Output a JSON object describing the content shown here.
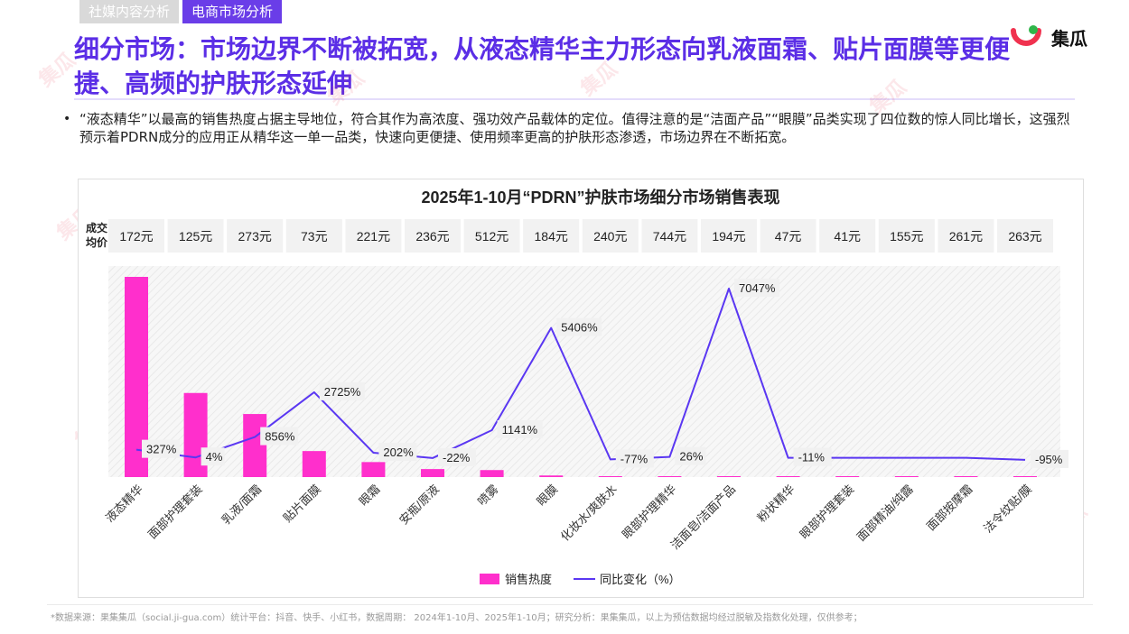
{
  "tabs": [
    {
      "label": "社媒内容分析",
      "active": false
    },
    {
      "label": "电商市场分析",
      "active": true
    }
  ],
  "brand": {
    "name": "集瓜"
  },
  "title": "细分市场：市场边界不断被拓宽，从液态精华主力形态向乳液面霜、贴片面膜等更便捷、高频的护肤形态延伸",
  "bullet": "“液态精华”以最高的销售热度占据主导地位，符合其作为高浓度、强功效产品载体的定位。值得注意的是“洁面产品”“眼膜”品类实现了四位数的惊人同比增长，这强烈预示着PDRN成分的应用正从精华这一单一品类，快速向更便捷、使用频率更高的护肤形态渗透，市场边界在不断拓宽。",
  "footer": "*数据来源：果集集瓜（social.ji-gua.com）统计平台：抖音、快手、小红书，数据周期： 2024年1-10月、2025年1-10月；研究分析：果集集瓜，以上为预估数据均经过脱敏及指数化处理，仅供参考；",
  "colors": {
    "bar": "#ff2fcc",
    "line": "#5a37f2",
    "accent": "#5b2ee6"
  },
  "chart_data": {
    "type": "bar+line",
    "title": "2025年1-10月“PDRN”护肤市场细分市场销售表现",
    "price_row_label": "成交均价",
    "categories": [
      "液态精华",
      "面部护理套装",
      "乳液/面霜",
      "贴片面膜",
      "眼霜",
      "安瓶/原液",
      "喷雾",
      "眼膜",
      "化妆水/爽肤水",
      "眼部护理精华",
      "洁面皂/洁面产品",
      "粉状精华",
      "眼部护理套装",
      "面部精油/纯露",
      "面部按摩霜",
      "法令纹贴/膜"
    ],
    "avg_price": [
      "172元",
      "125元",
      "273元",
      "73元",
      "221元",
      "236元",
      "512元",
      "184元",
      "240元",
      "744元",
      "194元",
      "47元",
      "41元",
      "155元",
      "261元",
      "263元"
    ],
    "series": [
      {
        "name": "销售热度",
        "type": "bar",
        "values": [
          100,
          42,
          31.5,
          13,
          7.5,
          4,
          3.5,
          0.8,
          0.4,
          0.2,
          0.2,
          0.1,
          0.1,
          0.1,
          0.1,
          0.1
        ]
      },
      {
        "name": "同比变化（%）",
        "type": "line",
        "values": [
          327,
          4,
          856,
          2725,
          202,
          -22,
          1141,
          5406,
          -77,
          26,
          7047,
          -11,
          null,
          null,
          null,
          -95
        ],
        "labels": [
          "327%",
          "4%",
          "856%",
          "2725%",
          "202%",
          "-22%",
          "1141%",
          "5406%",
          "-77%",
          "26%",
          "7047%",
          "-11%",
          "",
          "",
          "",
          "-95%"
        ]
      }
    ],
    "legend_position": "bottom"
  }
}
